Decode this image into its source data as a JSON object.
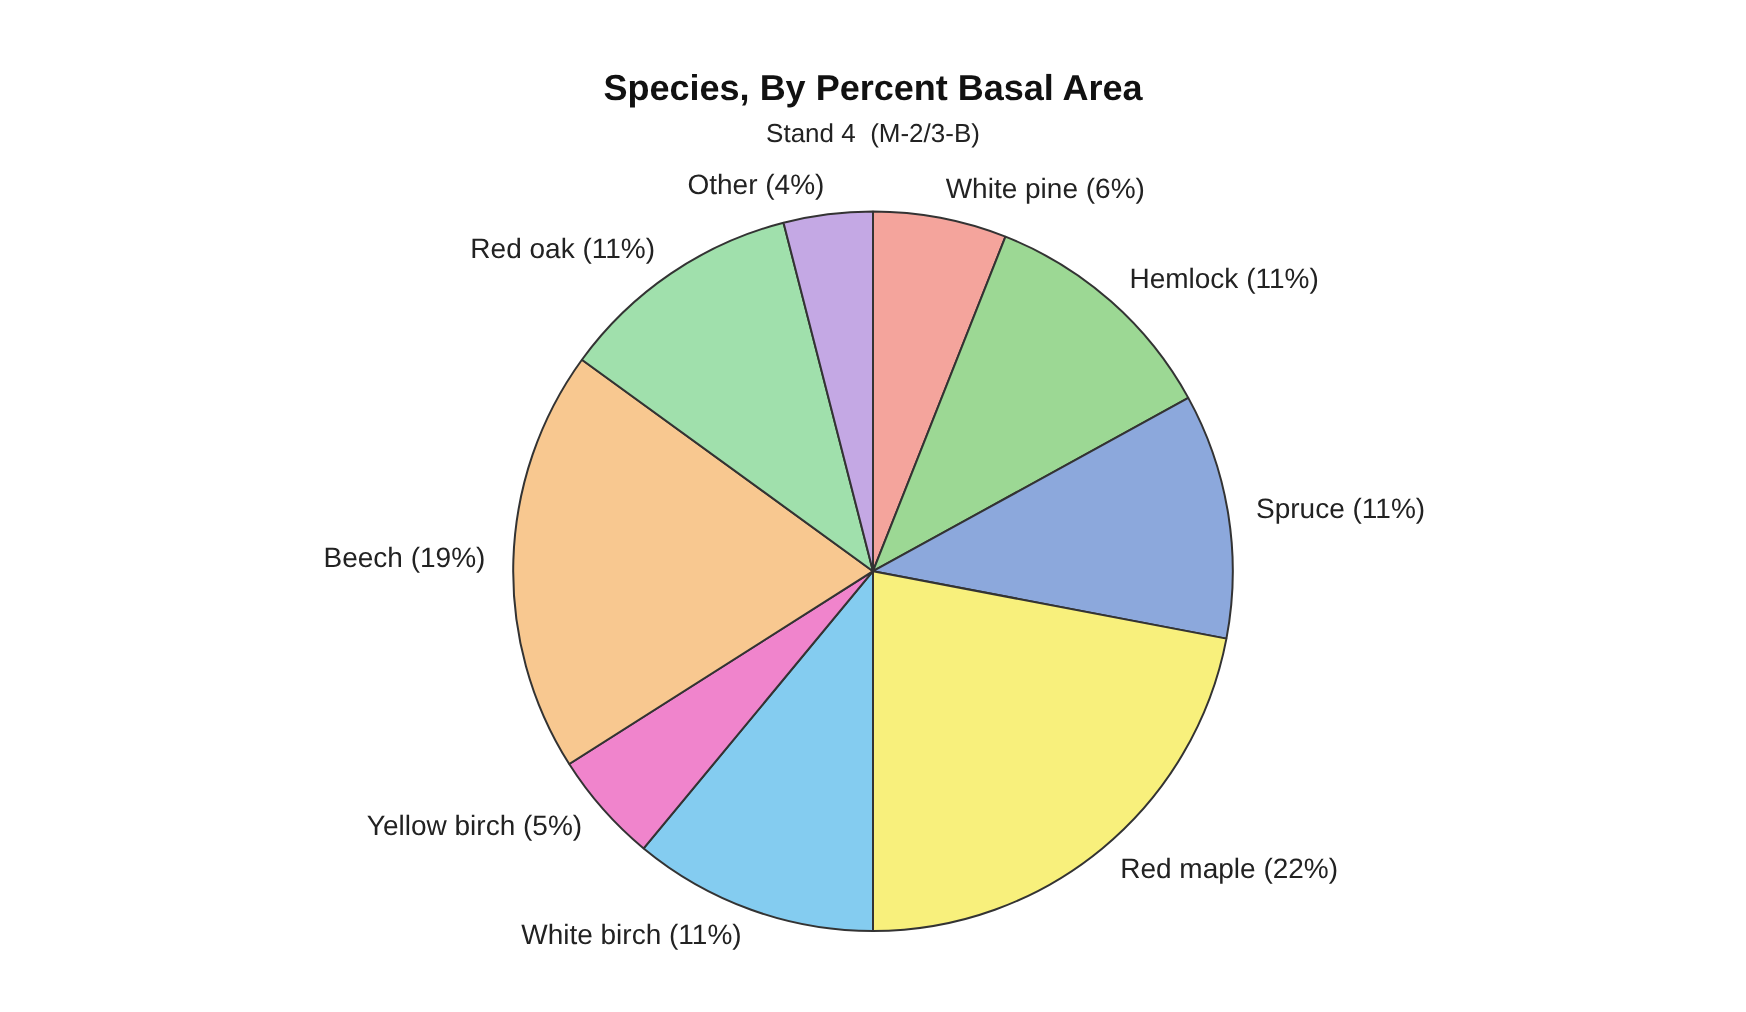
{
  "chart_data": {
    "type": "pie",
    "title": "Species, By Percent Basal Area",
    "subtitle": "Stand 4  (M-2/3-B)",
    "categories": [
      "White pine (6%)",
      "Hemlock (11%)",
      "Spruce (11%)",
      "Red maple (22%)",
      "White birch (11%)",
      "Yellow birch (5%)",
      "Beech (19%)",
      "Red oak (11%)",
      "Other (4%)"
    ],
    "values": [
      6,
      11,
      11,
      22,
      11,
      5,
      19,
      11,
      4
    ],
    "colors": [
      "#f4a49c",
      "#9cd894",
      "#8ca8dc",
      "#f8f07c",
      "#84ccf0",
      "#f084cc",
      "#f8c890",
      "#a0e0ac",
      "#c4a8e4"
    ],
    "legend": false
  }
}
